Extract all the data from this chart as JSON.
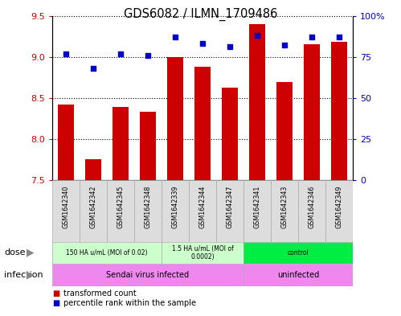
{
  "title": "GDS6082 / ILMN_1709486",
  "samples": [
    "GSM1642340",
    "GSM1642342",
    "GSM1642345",
    "GSM1642348",
    "GSM1642339",
    "GSM1642344",
    "GSM1642347",
    "GSM1642341",
    "GSM1642343",
    "GSM1642346",
    "GSM1642349"
  ],
  "transformed_counts": [
    8.42,
    7.75,
    8.39,
    8.33,
    9.0,
    8.88,
    8.63,
    9.4,
    8.69,
    9.15,
    9.18
  ],
  "percentile_ranks": [
    77,
    68,
    77,
    76,
    87,
    83,
    81,
    88,
    82,
    87,
    87
  ],
  "ylim_left": [
    7.5,
    9.5
  ],
  "ylim_right": [
    0,
    100
  ],
  "yticks_left": [
    7.5,
    8.0,
    8.5,
    9.0,
    9.5
  ],
  "yticks_right": [
    0,
    25,
    50,
    75,
    100
  ],
  "ytick_labels_right": [
    "0",
    "25",
    "50",
    "75",
    "100%"
  ],
  "bar_color": "#cc0000",
  "dot_color": "#0000cc",
  "bar_width": 0.6,
  "dose_groups": [
    {
      "label": "150 HA u/mL (MOI of 0.02)",
      "start": 0,
      "end": 4,
      "color": "#ccffcc"
    },
    {
      "label": "1.5 HA u/mL (MOI of\n0.0002)",
      "start": 4,
      "end": 7,
      "color": "#ccffcc"
    },
    {
      "label": "control",
      "start": 7,
      "end": 11,
      "color": "#00ee44"
    }
  ],
  "infection_groups": [
    {
      "label": "Sendai virus infected",
      "start": 0,
      "end": 7,
      "color": "#ee88ee"
    },
    {
      "label": "uninfected",
      "start": 7,
      "end": 11,
      "color": "#ee88ee"
    }
  ],
  "dose_label": "dose",
  "infection_label": "infection",
  "legend_items": [
    {
      "label": "transformed count",
      "color": "#cc0000"
    },
    {
      "label": "percentile rank within the sample",
      "color": "#0000cc"
    }
  ],
  "grid_color": "#000000",
  "left_tick_color": "#cc0000",
  "right_tick_color": "#0000cc",
  "sample_cell_color": "#dddddd",
  "border_color": "#aaaaaa"
}
